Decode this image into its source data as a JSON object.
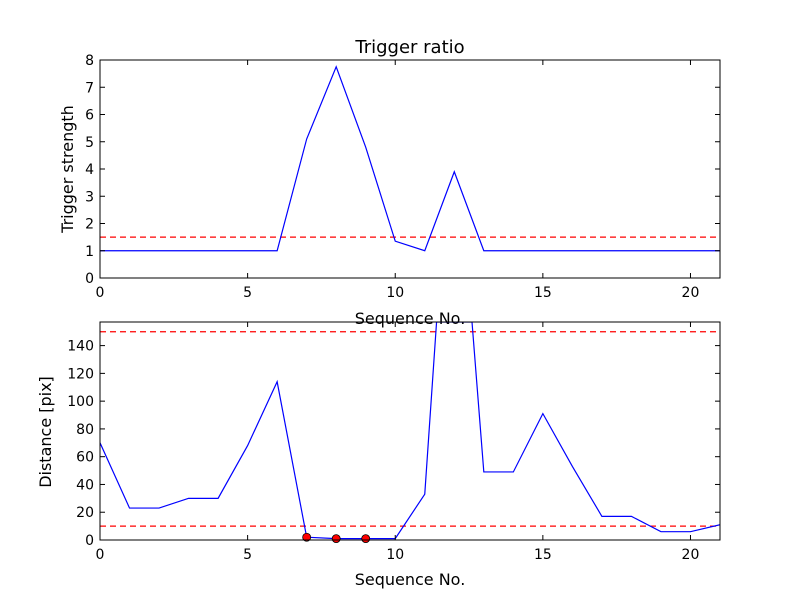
{
  "chart_data": [
    {
      "type": "line",
      "title": "Trigger ratio",
      "xlabel": "Sequence No.",
      "ylabel": "Trigger strength",
      "xlim": [
        0,
        21
      ],
      "ylim": [
        0,
        8
      ],
      "xticks": [
        0,
        5,
        10,
        15,
        20
      ],
      "yticks": [
        0,
        1,
        2,
        3,
        4,
        5,
        6,
        7,
        8
      ],
      "grid": false,
      "series": [
        {
          "style": "solid",
          "color": "#0000ff",
          "x": [
            0,
            1,
            2,
            3,
            4,
            5,
            6,
            7,
            8,
            9,
            10,
            11,
            12,
            13,
            14,
            15,
            16,
            17,
            18,
            19,
            20,
            21
          ],
          "y": [
            1.0,
            1.0,
            1.0,
            1.0,
            1.0,
            1.0,
            1.0,
            5.1,
            7.75,
            4.8,
            1.35,
            1.0,
            3.9,
            1.0,
            1.0,
            1.0,
            1.0,
            1.0,
            1.0,
            1.0,
            1.0,
            1.0
          ]
        }
      ],
      "hlines": [
        {
          "y": 1.5,
          "color": "#ff0000",
          "style": "dashed"
        }
      ]
    },
    {
      "type": "line",
      "title": "",
      "xlabel": "Sequence No.",
      "ylabel": "Distance [pix]",
      "xlim": [
        0,
        21
      ],
      "ylim": [
        0,
        157
      ],
      "xticks": [
        0,
        5,
        10,
        15,
        20
      ],
      "yticks": [
        0,
        20,
        40,
        60,
        80,
        100,
        120,
        140
      ],
      "grid": false,
      "series": [
        {
          "style": "solid",
          "color": "#0000ff",
          "x": [
            0,
            1,
            2,
            3,
            4,
            5,
            6,
            7,
            8,
            9,
            10,
            11,
            11.4,
            12.6,
            13,
            14,
            15,
            16,
            17,
            18,
            19,
            20,
            21
          ],
          "y": [
            70,
            23,
            23,
            30,
            30,
            68,
            114,
            2,
            1,
            1,
            1,
            33,
            157,
            157,
            49,
            49,
            91,
            53,
            17,
            17,
            6,
            6,
            11
          ]
        }
      ],
      "markers": {
        "color": "#ff0000",
        "x": [
          7,
          8,
          9
        ],
        "y": [
          2,
          1,
          1
        ]
      },
      "hlines": [
        {
          "y": 10,
          "color": "#ff0000",
          "style": "dashed"
        },
        {
          "y": 150,
          "color": "#ff0000",
          "style": "dashed"
        }
      ]
    }
  ]
}
